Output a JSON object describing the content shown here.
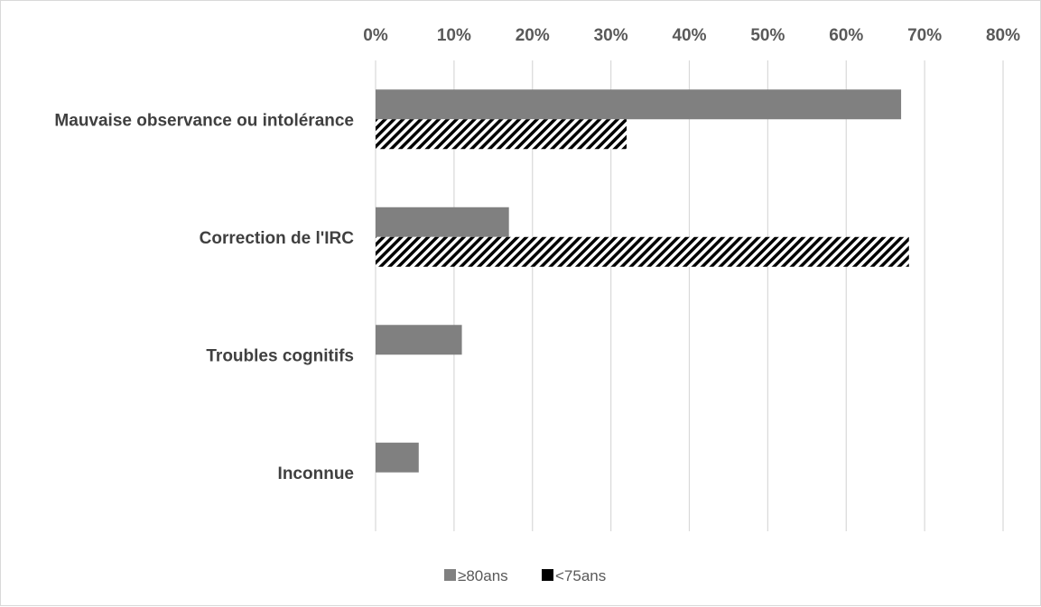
{
  "chart_data": {
    "type": "bar",
    "orientation": "horizontal",
    "categories": [
      "Mauvaise observance ou intolérance",
      "Correction de l'IRC",
      "Troubles cognitifs",
      "Inconnue"
    ],
    "series": [
      {
        "name": "≥80ans",
        "values": [
          67,
          17,
          11,
          5.5
        ],
        "color": "#808080",
        "pattern": "solid"
      },
      {
        "name": "<75ans",
        "values": [
          32,
          68,
          0,
          0
        ],
        "color": "#000000",
        "pattern": "diagonal-stripes"
      }
    ],
    "x_ticks": [
      "0%",
      "10%",
      "20%",
      "30%",
      "40%",
      "50%",
      "60%",
      "70%",
      "80%"
    ],
    "xlim": [
      0,
      80
    ],
    "x_axis_position": "top",
    "grid": true,
    "legend_position": "bottom"
  }
}
